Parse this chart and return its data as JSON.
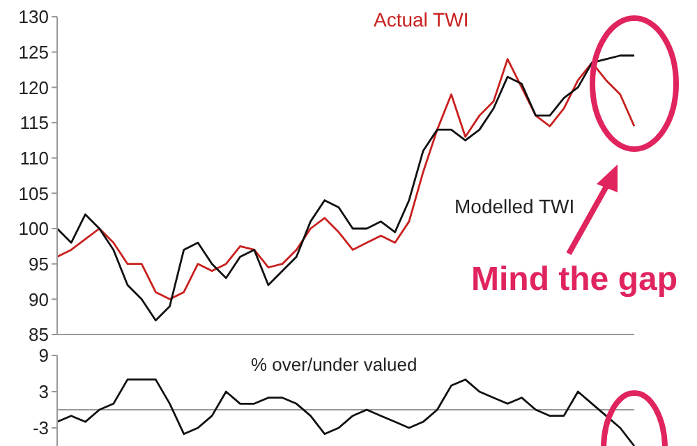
{
  "chart_data": [
    {
      "type": "line",
      "categories": [
        null,
        null,
        null,
        null,
        null,
        null,
        null,
        null,
        null,
        null,
        null,
        null,
        null,
        null,
        null,
        null,
        null,
        null,
        null,
        null,
        null,
        null,
        null,
        null,
        null,
        null,
        null,
        null,
        null,
        null,
        null,
        null,
        null,
        null,
        null,
        null,
        null,
        null,
        null,
        null,
        null,
        null
      ],
      "series": [
        {
          "name": "Actual TWI",
          "color": "#c8201e",
          "values": [
            96,
            97,
            98.5,
            100,
            98,
            95,
            95,
            91,
            90,
            91,
            95,
            94,
            95,
            97.5,
            97,
            94.5,
            95,
            97,
            100,
            101.5,
            99.5,
            97,
            98,
            99,
            98,
            101,
            108,
            114,
            119,
            113,
            116,
            118,
            124,
            120,
            116,
            114.5,
            117,
            121,
            123.5,
            121,
            119,
            114.5
          ]
        },
        {
          "name": "Modelled TWI",
          "color": "#111111",
          "values": [
            100,
            98,
            102,
            100,
            97,
            92,
            90,
            87,
            89,
            97,
            98,
            95,
            93,
            96,
            97,
            92,
            94,
            96,
            101,
            104,
            103,
            100,
            100,
            101,
            99.5,
            104,
            111,
            114,
            114,
            112.5,
            114,
            117,
            121.5,
            120.5,
            116,
            116,
            118.5,
            120,
            123.5,
            124,
            124.5,
            124.5
          ]
        }
      ],
      "ylim": [
        85,
        130
      ],
      "yticks": [
        85,
        90,
        95,
        100,
        105,
        110,
        115,
        120,
        125,
        130
      ],
      "tick_labels": "y",
      "line_style": "solid",
      "marker": "none",
      "annotations": [
        "Mind the gap"
      ]
    },
    {
      "type": "line",
      "title": "% over/under valued",
      "categories": [
        null,
        null,
        null,
        null,
        null,
        null,
        null,
        null,
        null,
        null,
        null,
        null,
        null,
        null,
        null,
        null,
        null,
        null,
        null,
        null,
        null,
        null,
        null,
        null,
        null,
        null,
        null,
        null,
        null,
        null,
        null,
        null,
        null,
        null,
        null,
        null,
        null,
        null,
        null,
        null,
        null,
        null
      ],
      "series": [
        {
          "color": "#111111",
          "values": [
            -2,
            -1,
            -2,
            0,
            1,
            5,
            5,
            5,
            1,
            -4,
            -3,
            -1,
            3,
            1,
            1,
            2,
            2,
            1,
            -1,
            -4,
            -3,
            -1,
            0,
            -1,
            -2,
            -3,
            -2,
            0,
            4,
            5,
            3,
            2,
            1,
            2,
            0,
            -1,
            -1,
            3,
            1,
            -1,
            -3,
            -6
          ]
        }
      ],
      "ylim": [
        -6,
        9
      ],
      "yticks": [
        -3,
        3,
        9
      ],
      "tick_labels": "y",
      "line_style": "solid",
      "marker": "none",
      "ref_lines": [
        {
          "axis": "y",
          "value": 0,
          "color": "#999999"
        }
      ]
    }
  ]
}
